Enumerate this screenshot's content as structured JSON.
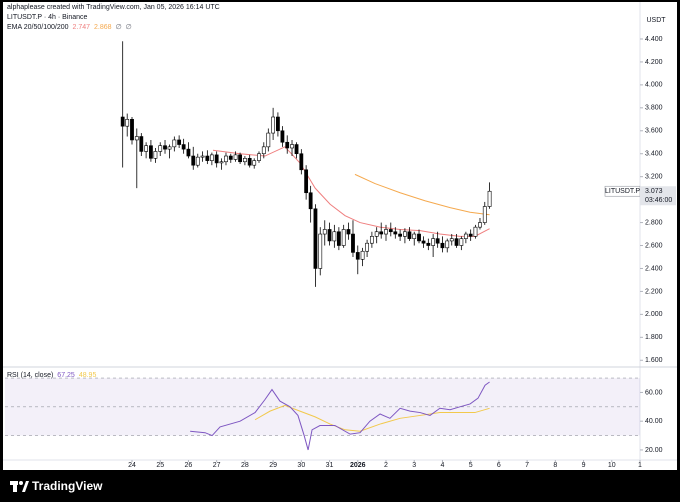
{
  "header": {
    "text": "alphaplease created with TradingView.com, Jan 05, 2026 16:14 UTC"
  },
  "chart_data": [
    {
      "type": "candlestick",
      "title": "LITUSDT.P · 4h · Binance",
      "indicator_label": "EMA 20/50/100/200",
      "indicator_missing": [
        "∅",
        "∅"
      ],
      "y_unit": "USDT",
      "price_tag_label": "LITUSDT.P",
      "price_tag_countdown": "03:46:00",
      "up_color": "#ffffff",
      "down_color": "#000000",
      "border_color": "#000000",
      "candles": {
        "x": [
          23.67,
          23.83,
          24,
          24.17,
          24.33,
          24.5,
          24.67,
          24.83,
          25,
          25.17,
          25.33,
          25.5,
          25.67,
          25.83,
          26,
          26.17,
          26.33,
          26.5,
          26.67,
          26.83,
          27,
          27.17,
          27.33,
          27.5,
          27.67,
          27.83,
          28,
          28.17,
          28.33,
          28.5,
          28.67,
          28.83,
          29,
          29.17,
          29.33,
          29.5,
          29.67,
          29.83,
          30,
          30.17,
          30.33,
          30.5,
          30.67,
          30.83,
          31,
          31.17,
          31.33,
          31.5,
          31.67,
          31.83,
          32,
          32.17,
          32.33,
          32.5,
          32.67,
          32.83,
          33,
          33.17,
          33.33,
          33.5,
          33.67,
          33.83,
          34,
          34.17,
          34.33,
          34.5,
          34.67,
          34.83,
          35,
          35.17,
          35.33,
          35.5,
          35.67,
          35.83,
          36,
          36.17,
          36.33,
          36.5,
          36.67
        ],
        "open": [
          3.72,
          3.64,
          3.7,
          3.52,
          3.55,
          3.42,
          3.47,
          3.36,
          3.42,
          3.47,
          3.44,
          3.46,
          3.52,
          3.48,
          3.44,
          3.38,
          3.3,
          3.37,
          3.38,
          3.34,
          3.39,
          3.32,
          3.33,
          3.38,
          3.35,
          3.39,
          3.33,
          3.36,
          3.3,
          3.34,
          3.4,
          3.46,
          3.58,
          3.72,
          3.6,
          3.5,
          3.45,
          3.48,
          3.4,
          3.26,
          3.06,
          2.92,
          2.4,
          2.7,
          2.74,
          2.64,
          2.72,
          2.6,
          2.74,
          2.7,
          2.54,
          2.48,
          2.55,
          2.62,
          2.68,
          2.72,
          2.7,
          2.74,
          2.72,
          2.7,
          2.68,
          2.72,
          2.66,
          2.7,
          2.64,
          2.62,
          2.6,
          2.66,
          2.62,
          2.58,
          2.64,
          2.66,
          2.6,
          2.66,
          2.7,
          2.68,
          2.76,
          2.8,
          2.94
        ],
        "high": [
          4.38,
          3.75,
          3.72,
          3.62,
          3.58,
          3.5,
          3.52,
          3.45,
          3.5,
          3.52,
          3.48,
          3.55,
          3.56,
          3.53,
          3.5,
          3.46,
          3.4,
          3.42,
          3.43,
          3.41,
          3.42,
          3.36,
          3.41,
          3.4,
          3.42,
          3.41,
          3.38,
          3.39,
          3.36,
          3.42,
          3.5,
          3.62,
          3.8,
          3.76,
          3.64,
          3.56,
          3.52,
          3.5,
          3.44,
          3.3,
          3.12,
          2.96,
          2.76,
          2.82,
          2.8,
          2.78,
          2.76,
          2.78,
          2.8,
          2.82,
          2.6,
          2.58,
          2.65,
          2.72,
          2.76,
          2.8,
          2.78,
          2.8,
          2.76,
          2.74,
          2.75,
          2.76,
          2.72,
          2.74,
          2.68,
          2.66,
          2.7,
          2.72,
          2.68,
          2.66,
          2.7,
          2.7,
          2.68,
          2.72,
          2.74,
          2.78,
          2.84,
          2.98,
          3.15
        ],
        "low": [
          3.28,
          3.55,
          3.48,
          3.1,
          3.38,
          3.36,
          3.33,
          3.32,
          3.38,
          3.4,
          3.36,
          3.42,
          3.45,
          3.4,
          3.36,
          3.26,
          3.28,
          3.33,
          3.31,
          3.3,
          3.28,
          3.26,
          3.3,
          3.32,
          3.33,
          3.31,
          3.3,
          3.28,
          3.27,
          3.32,
          3.36,
          3.42,
          3.52,
          3.55,
          3.46,
          3.4,
          3.38,
          3.36,
          3.22,
          3.0,
          2.8,
          2.24,
          2.34,
          2.6,
          2.6,
          2.58,
          2.56,
          2.58,
          2.65,
          2.5,
          2.35,
          2.42,
          2.5,
          2.58,
          2.62,
          2.66,
          2.64,
          2.68,
          2.66,
          2.64,
          2.62,
          2.64,
          2.6,
          2.62,
          2.58,
          2.56,
          2.5,
          2.58,
          2.54,
          2.54,
          2.6,
          2.58,
          2.56,
          2.62,
          2.64,
          2.66,
          2.74,
          2.78,
          2.92
        ],
        "close": [
          3.64,
          3.7,
          3.52,
          3.55,
          3.42,
          3.47,
          3.36,
          3.42,
          3.47,
          3.44,
          3.46,
          3.52,
          3.48,
          3.44,
          3.38,
          3.3,
          3.37,
          3.38,
          3.34,
          3.39,
          3.32,
          3.33,
          3.38,
          3.35,
          3.39,
          3.33,
          3.36,
          3.3,
          3.34,
          3.4,
          3.46,
          3.58,
          3.72,
          3.6,
          3.5,
          3.45,
          3.48,
          3.4,
          3.26,
          3.06,
          2.92,
          2.4,
          2.7,
          2.74,
          2.64,
          2.72,
          2.6,
          2.74,
          2.7,
          2.54,
          2.48,
          2.55,
          2.62,
          2.68,
          2.72,
          2.7,
          2.74,
          2.72,
          2.7,
          2.68,
          2.72,
          2.66,
          2.7,
          2.64,
          2.62,
          2.6,
          2.66,
          2.62,
          2.58,
          2.64,
          2.66,
          2.6,
          2.66,
          2.7,
          2.68,
          2.76,
          2.8,
          2.94,
          3.073
        ]
      },
      "series": [
        {
          "color": "#ef7f7f",
          "x": [
            26.87,
            27.83,
            28.71,
            29.42,
            29.95,
            30.49,
            31.02,
            31.55,
            32.08,
            32.79,
            33.5,
            34.21,
            34.91,
            35.62,
            36.15,
            36.67
          ],
          "values": [
            3.43,
            3.4,
            3.38,
            3.46,
            3.32,
            3.1,
            2.96,
            2.86,
            2.8,
            2.76,
            2.74,
            2.73,
            2.7,
            2.68,
            2.68,
            2.747
          ]
        },
        {
          "color": "#f5a94e",
          "x": [
            31.9,
            32.61,
            33.5,
            34.38,
            35.27,
            35.98,
            36.67
          ],
          "values": [
            3.22,
            3.14,
            3.06,
            2.99,
            2.93,
            2.89,
            2.868
          ]
        }
      ],
      "xlim": [
        19.5,
        42
      ],
      "xticks": [
        24,
        25,
        26,
        27,
        28,
        29,
        30,
        31,
        {
          "value": 32,
          "label": "2026"
        },
        {
          "value": 33,
          "label": "2"
        },
        {
          "value": 34,
          "label": "3"
        },
        {
          "value": 35,
          "label": "4"
        },
        {
          "value": 36,
          "label": "5"
        },
        {
          "value": 37,
          "label": "6"
        },
        {
          "value": 38,
          "label": "7"
        },
        {
          "value": 39,
          "label": "8"
        },
        {
          "value": 40,
          "label": "9"
        },
        {
          "value": 41,
          "label": "10"
        },
        {
          "value": 42,
          "label": "1"
        }
      ],
      "ylim": [
        1.55,
        4.67
      ],
      "yticks": [
        {
          "value": 4.4,
          "label": "4.400"
        },
        {
          "value": 4.2,
          "label": "4.200"
        },
        {
          "value": 4.0,
          "label": "4.000"
        },
        {
          "value": 3.8,
          "label": "3.800"
        },
        {
          "value": 3.6,
          "label": "3.600"
        },
        {
          "value": 3.4,
          "label": "3.400"
        },
        {
          "value": 3.2,
          "label": "3.200"
        },
        {
          "value": 3.0,
          "label": "3.000"
        },
        {
          "value": 2.8,
          "label": "2.800"
        },
        {
          "value": 2.6,
          "label": "2.600"
        },
        {
          "value": 2.4,
          "label": "2.400"
        },
        {
          "value": 2.2,
          "label": "2.200"
        },
        {
          "value": 2.0,
          "label": "2.000"
        },
        {
          "value": 1.8,
          "label": "1.800"
        },
        {
          "value": 1.6,
          "label": "1.600"
        }
      ],
      "grid": false
    },
    {
      "type": "line",
      "title": "RSI (14, close)",
      "series": [
        {
          "color": "#7e57c2",
          "x": [
            26.06,
            26.59,
            26.84,
            27.12,
            27.83,
            28.36,
            28.71,
            28.96,
            29.24,
            29.6,
            29.88,
            30.1,
            30.24,
            30.38,
            30.66,
            31.19,
            31.73,
            32.08,
            32.43,
            32.79,
            33.14,
            33.5,
            33.85,
            34.21,
            34.56,
            34.91,
            35.27,
            35.62,
            35.98,
            36.26,
            36.51,
            36.67
          ],
          "values": [
            33,
            32,
            30,
            36,
            40,
            46,
            55,
            62,
            54,
            50,
            44,
            30,
            20,
            34,
            37,
            37,
            31,
            32,
            40,
            45,
            42,
            49,
            47,
            46,
            44,
            49,
            48,
            50,
            52,
            56,
            65,
            67.25
          ]
        },
        {
          "color": "#f2c94c",
          "x": [
            28.36,
            28.89,
            29.42,
            29.95,
            30.49,
            31.02,
            31.55,
            32.08,
            32.79,
            33.5,
            34.21,
            34.91,
            35.62,
            36.15,
            36.67
          ],
          "values": [
            41,
            47,
            51,
            47,
            43,
            38,
            34,
            33,
            38,
            42,
            44,
            46,
            46,
            46,
            48.95
          ]
        }
      ],
      "band_lines": [
        70,
        50,
        30
      ],
      "band_color": "#7e57c2",
      "ylim": [
        13,
        77
      ],
      "yticks": [
        {
          "value": 60,
          "label": "60.00"
        },
        {
          "value": 40,
          "label": "40.00"
        },
        {
          "value": 20,
          "label": "20.00"
        }
      ]
    }
  ],
  "footer": {
    "logo_text": "TradingView"
  }
}
